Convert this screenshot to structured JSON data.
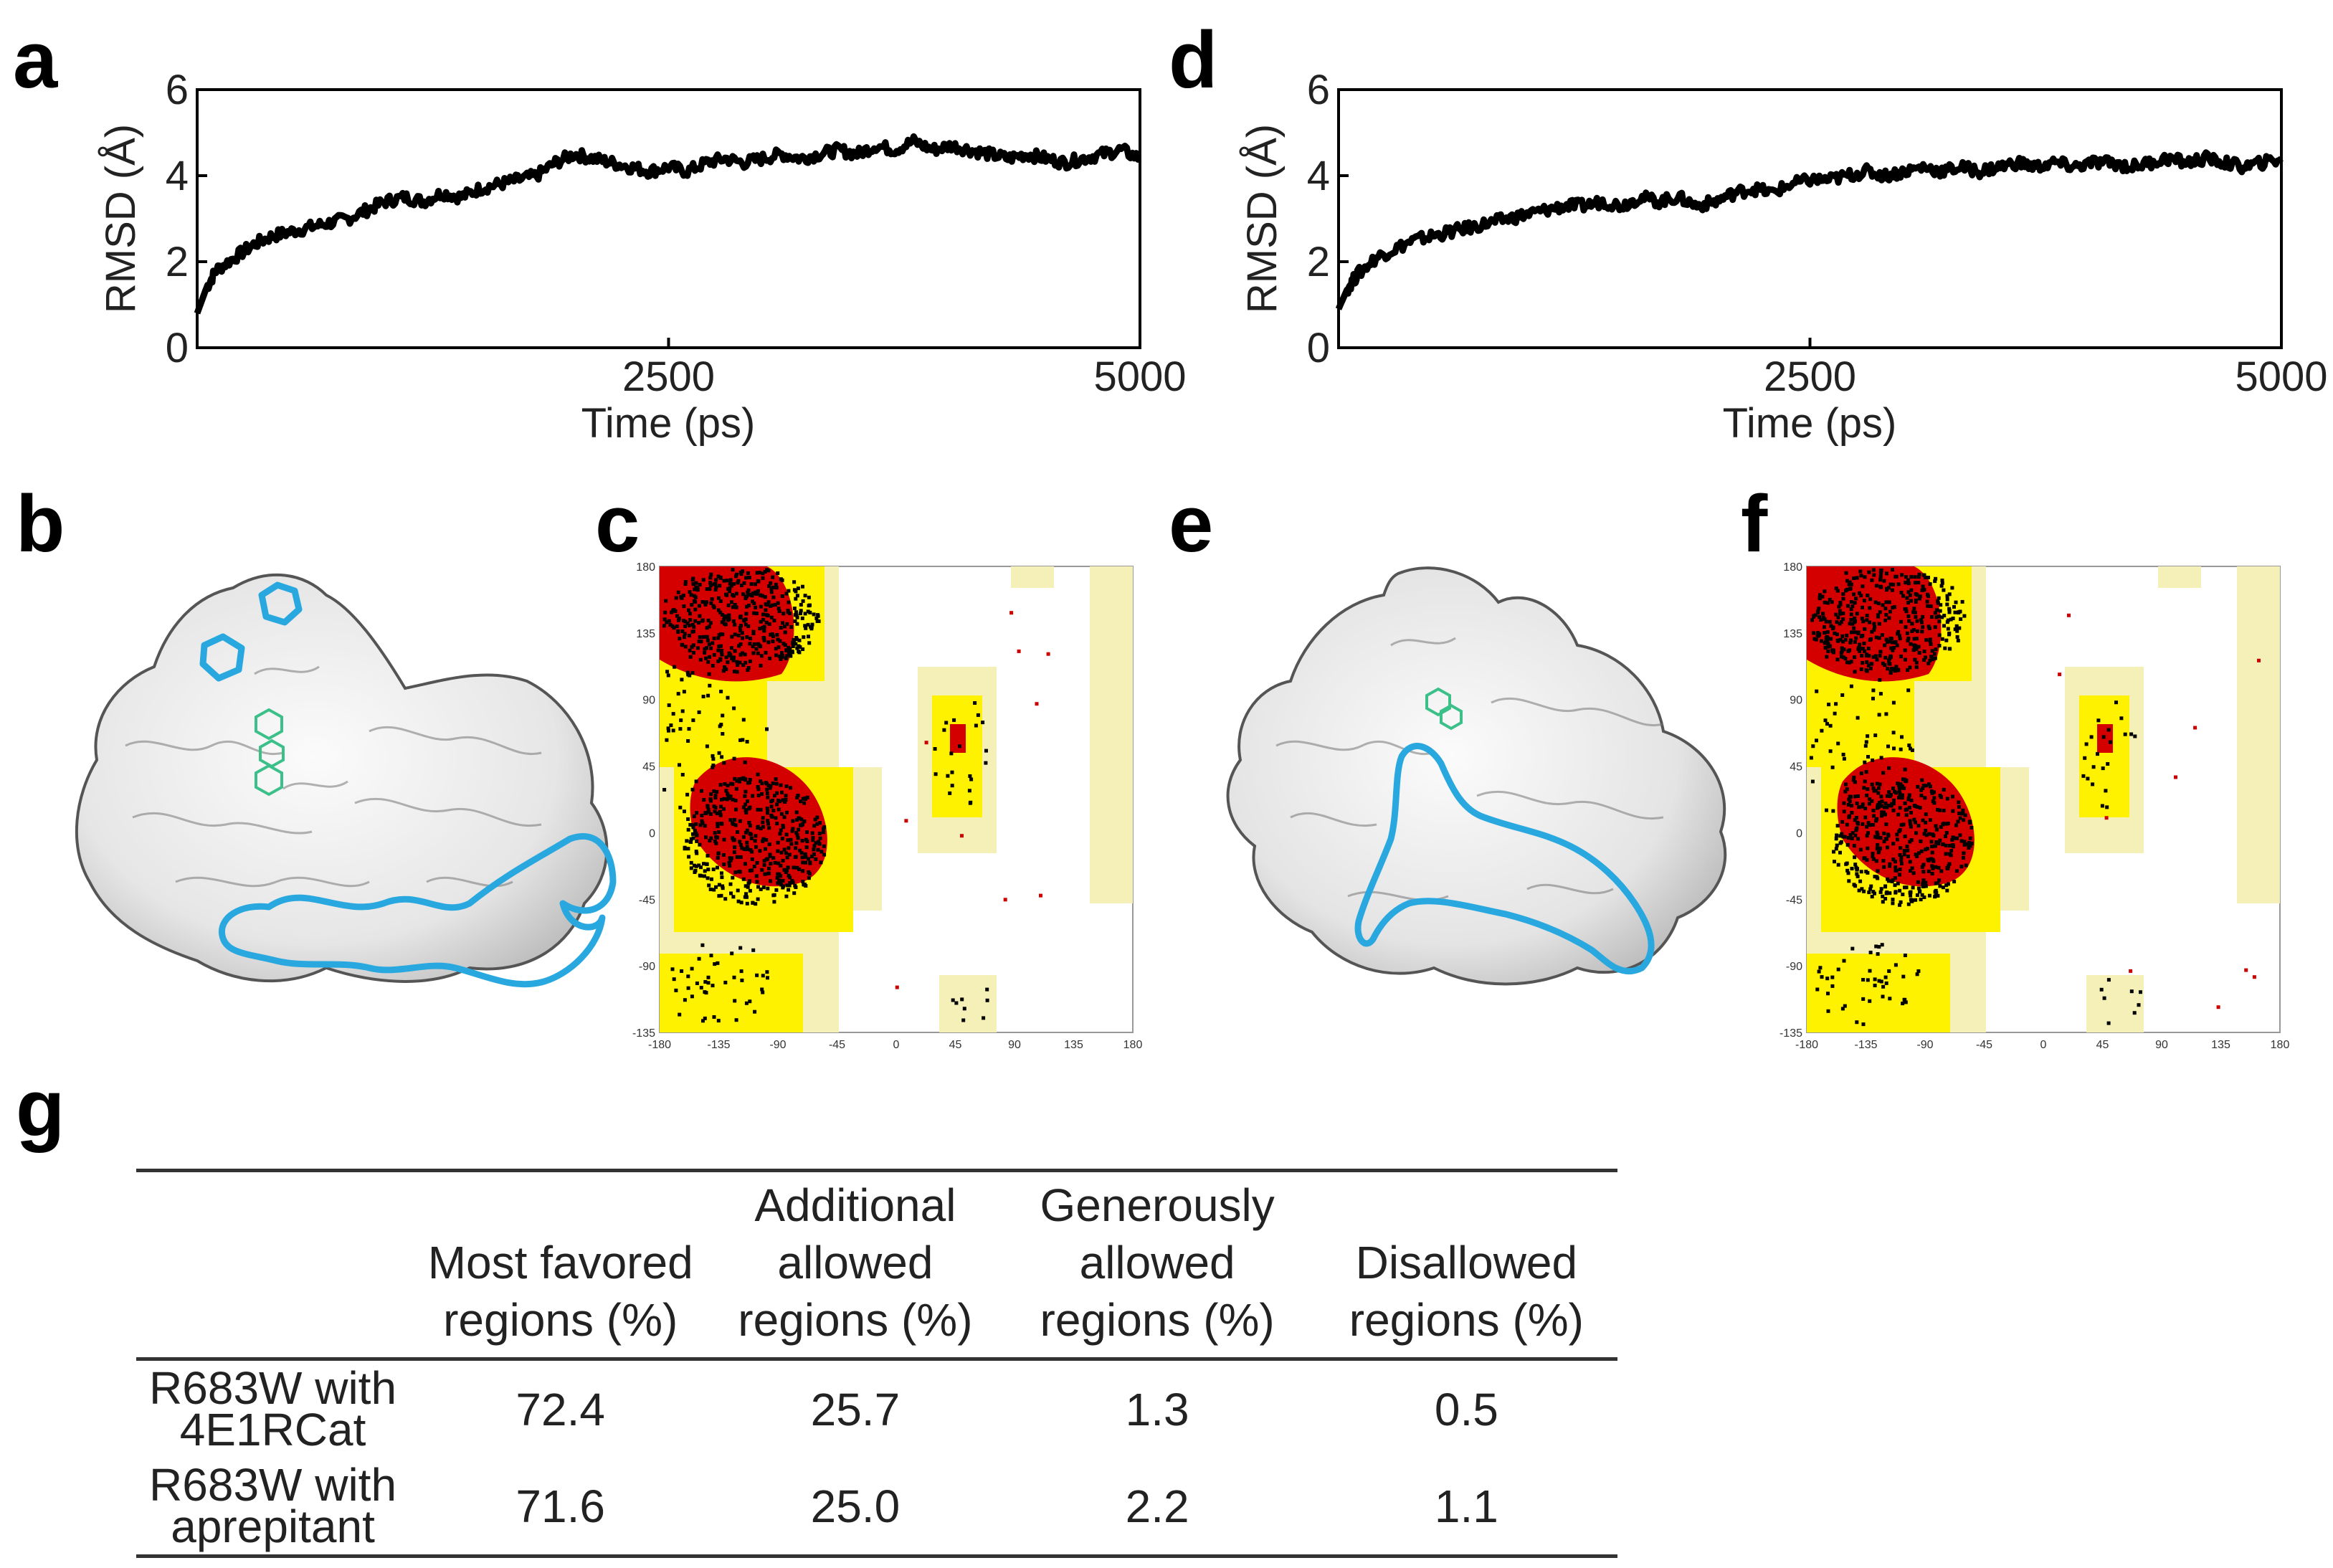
{
  "panels": {
    "a": "a",
    "b": "b",
    "c": "c",
    "d": "d",
    "e": "e",
    "f": "f",
    "g": "g"
  },
  "chart_data": [
    {
      "id": "a",
      "type": "line",
      "xlabel": "Time (ps)",
      "ylabel": "RMSD (Å)",
      "xlim": [
        0,
        5000
      ],
      "ylim": [
        0,
        6
      ],
      "xticks": [
        "2500",
        "5000"
      ],
      "yticks": [
        "0",
        "2",
        "4",
        "6"
      ],
      "x": [
        0,
        50,
        100,
        200,
        300,
        400,
        500,
        600,
        700,
        800,
        900,
        1000,
        1100,
        1200,
        1300,
        1400,
        1500,
        1600,
        1700,
        1800,
        1900,
        2000,
        2100,
        2200,
        2300,
        2400,
        2500,
        2600,
        2700,
        2800,
        2900,
        3000,
        3100,
        3200,
        3300,
        3400,
        3500,
        3600,
        3700,
        3800,
        3900,
        4000,
        4100,
        4200,
        4300,
        4400,
        4500,
        4600,
        4700,
        4800,
        4900,
        5000
      ],
      "y": [
        0.8,
        1.4,
        1.8,
        2.1,
        2.4,
        2.6,
        2.7,
        2.8,
        2.9,
        3.0,
        3.2,
        3.4,
        3.5,
        3.4,
        3.6,
        3.5,
        3.7,
        3.8,
        3.9,
        4.0,
        4.3,
        4.5,
        4.4,
        4.3,
        4.2,
        4.1,
        4.2,
        4.1,
        4.3,
        4.4,
        4.3,
        4.4,
        4.5,
        4.4,
        4.5,
        4.6,
        4.5,
        4.7,
        4.6,
        4.8,
        4.6,
        4.7,
        4.6,
        4.5,
        4.4,
        4.5,
        4.4,
        4.3,
        4.4,
        4.5,
        4.6,
        4.4
      ]
    },
    {
      "id": "d",
      "type": "line",
      "xlabel": "Time (ps)",
      "ylabel": "RMSD (Å)",
      "xlim": [
        0,
        5000
      ],
      "ylim": [
        0,
        6
      ],
      "xticks": [
        "2500",
        "5000"
      ],
      "yticks": [
        "0",
        "2",
        "4",
        "6"
      ],
      "x": [
        0,
        50,
        100,
        200,
        300,
        400,
        500,
        600,
        700,
        800,
        900,
        1000,
        1100,
        1200,
        1300,
        1400,
        1500,
        1600,
        1700,
        1800,
        1900,
        2000,
        2100,
        2200,
        2300,
        2400,
        2500,
        2600,
        2700,
        2800,
        2900,
        3000,
        3100,
        3200,
        3300,
        3400,
        3500,
        3600,
        3700,
        3800,
        3900,
        4000,
        4100,
        4200,
        4300,
        4400,
        4500,
        4600,
        4700,
        4800,
        4900,
        5000
      ],
      "y": [
        0.9,
        1.4,
        1.7,
        2.1,
        2.3,
        2.5,
        2.6,
        2.7,
        2.8,
        2.9,
        3.0,
        3.1,
        3.2,
        3.3,
        3.3,
        3.4,
        3.3,
        3.5,
        3.4,
        3.5,
        3.3,
        3.4,
        3.6,
        3.7,
        3.6,
        3.8,
        3.9,
        3.9,
        4.0,
        4.1,
        4.0,
        4.1,
        4.2,
        4.1,
        4.2,
        4.1,
        4.2,
        4.3,
        4.2,
        4.3,
        4.2,
        4.3,
        4.3,
        4.2,
        4.3,
        4.4,
        4.3,
        4.4,
        4.3,
        4.2,
        4.3,
        4.4
      ]
    }
  ],
  "ramachandran": {
    "c": {
      "xticks": [
        "-180",
        "-135",
        "-90",
        "-45",
        "0",
        "45",
        "90",
        "135",
        "180"
      ],
      "yticks": [
        "180",
        "135",
        "90",
        "45",
        "0",
        "-45",
        "-90",
        "-135"
      ]
    },
    "f": {
      "xticks": [
        "-180",
        "-135",
        "-90",
        "-45",
        "0",
        "45",
        "90",
        "135",
        "180"
      ],
      "yticks": [
        "180",
        "135",
        "90",
        "45",
        "0",
        "-45",
        "-90",
        "-135"
      ]
    }
  },
  "table": {
    "headers": [
      "",
      "Most favored regions (%)",
      "Additional allowed regions (%)",
      "Generously allowed regions (%)",
      "Disallowed regions (%)"
    ],
    "rows": [
      {
        "label": "R683W with 4E1RCat",
        "values": [
          "72.4",
          "25.7",
          "1.3",
          "0.5"
        ]
      },
      {
        "label": "R683W with aprepitant",
        "values": [
          "71.6",
          "25.0",
          "2.2",
          "1.1"
        ]
      }
    ]
  },
  "colors": {
    "line": "#000000",
    "outline": "#29a8e0",
    "ligand": "#3cc08a",
    "rama_core": "#d40000",
    "rama_allowed": "#fff200",
    "rama_generous": "#f4f0b8",
    "point": "#000000"
  }
}
